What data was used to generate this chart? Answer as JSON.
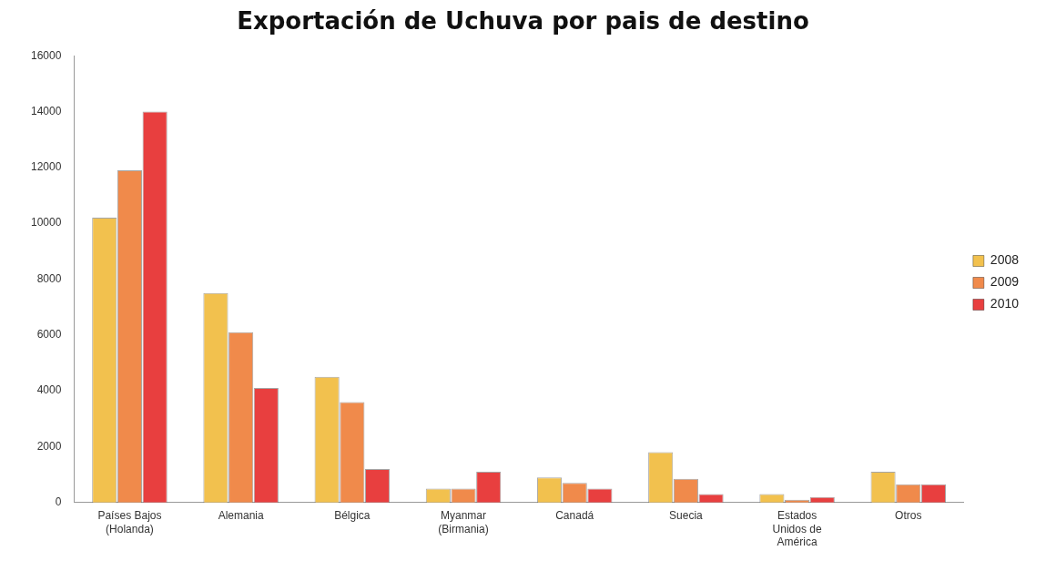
{
  "chart_data": {
    "type": "bar",
    "title": "Exportación de Uchuva por pais de destino",
    "categories": [
      "Países Bajos\n(Holanda)",
      "Alemania",
      "Bélgica",
      "Myanmar\n(Birmania)",
      "Canadá",
      "Suecia",
      "Estados\nUnidos de\nAmérica",
      "Otros"
    ],
    "series": [
      {
        "name": "2008",
        "color": "#f2c14e",
        "values": [
          10200,
          7500,
          4500,
          500,
          900,
          1800,
          300,
          1100
        ]
      },
      {
        "name": "2009",
        "color": "#f08a4b",
        "values": [
          11900,
          6100,
          3600,
          500,
          700,
          850,
          100,
          650
        ]
      },
      {
        "name": "2010",
        "color": "#e83f3f",
        "values": [
          14000,
          4100,
          1200,
          1100,
          500,
          300,
          200,
          650
        ]
      }
    ],
    "ylim": [
      0,
      16000
    ],
    "yticks": [
      0,
      2000,
      4000,
      6000,
      8000,
      10000,
      12000,
      14000,
      16000
    ],
    "grid": false,
    "legend": "right"
  }
}
